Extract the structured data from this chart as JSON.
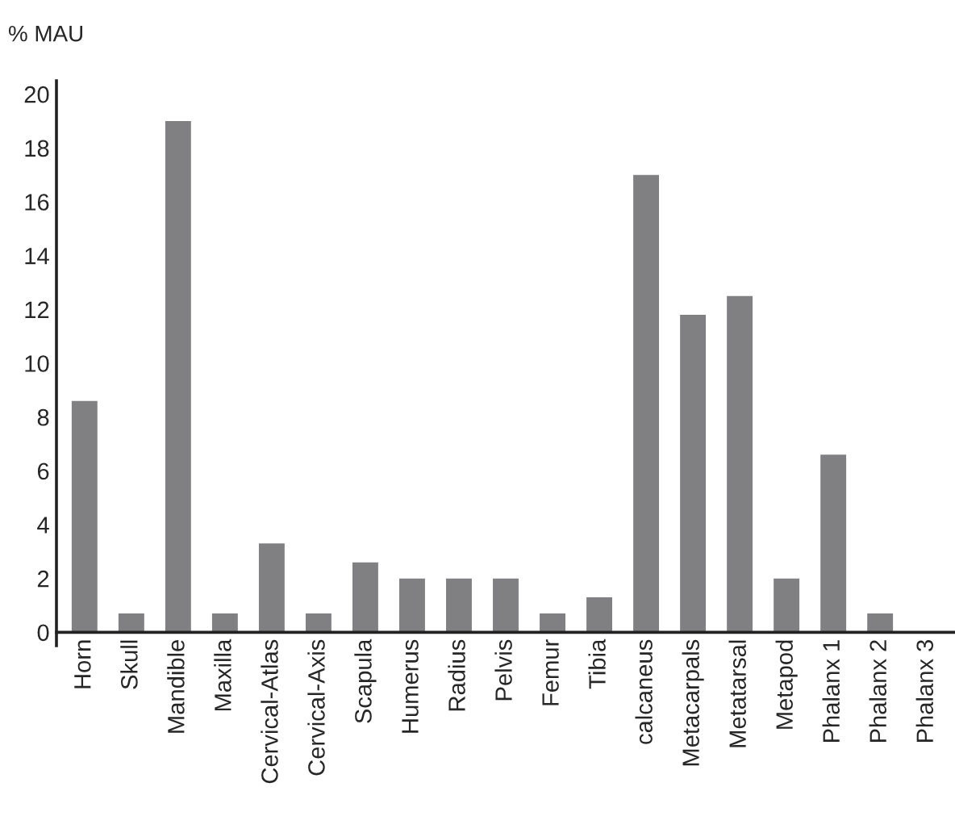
{
  "chart_data": {
    "type": "bar",
    "title": "% MAU",
    "categories": [
      "Horn",
      "Skull",
      "Mandible",
      "Maxilla",
      "Cervical-Atlas",
      "Cervical-Axis",
      "Scapula",
      "Humerus",
      "Radius",
      "Pelvis",
      "Femur",
      "Tibia",
      "calcaneus",
      "Metacarpals",
      "Metatarsal",
      "Metapod",
      "Phalanx 1",
      "Phalanx 2",
      "Phalanx 3"
    ],
    "values": [
      8.6,
      0.7,
      19.0,
      0.7,
      3.3,
      0.7,
      2.6,
      2.0,
      2.0,
      2.0,
      0.7,
      1.3,
      17.0,
      11.8,
      12.5,
      2.0,
      6.6,
      0.7,
      0
    ],
    "color": "#808083",
    "ylim": [
      -0.5,
      20.5
    ],
    "yticks": [
      0,
      2,
      4,
      6,
      8,
      10,
      12,
      14,
      16,
      18,
      20
    ],
    "grid": false,
    "legend": false
  }
}
